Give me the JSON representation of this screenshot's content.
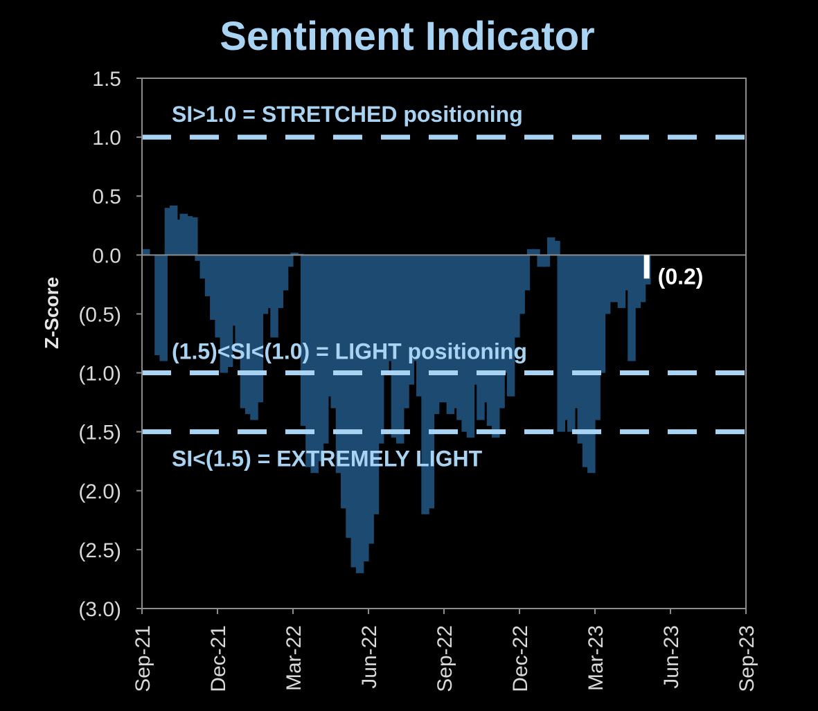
{
  "chart_data": {
    "type": "bar",
    "title": "Sentiment Indicator",
    "ylabel": "Z-Score",
    "xlabel": "",
    "ylim": [
      -3.0,
      1.5
    ],
    "yticks": [
      1.5,
      1.0,
      0.5,
      0.0,
      -0.5,
      -1.0,
      -1.5,
      -2.0,
      -2.5,
      -3.0
    ],
    "ytick_labels": [
      "1.5",
      "1.0",
      "0.5",
      "0.0",
      "(0.5)",
      "(1.0)",
      "(1.5)",
      "(2.0)",
      "(2.5)",
      "(3.0)"
    ],
    "xtick_labels": [
      "Sep-21",
      "Dec-21",
      "Mar-22",
      "Jun-22",
      "Sep-22",
      "Dec-22",
      "Mar-23",
      "Jun-23",
      "Sep-23"
    ],
    "grid": false,
    "colors": {
      "bars": "#1c4a70",
      "threshold_lines": "#a9d3f3",
      "latest_bar": "#ffffff",
      "background": "#000000"
    },
    "thresholds": [
      {
        "value": 1.0,
        "label": "SI>1.0 = STRETCHED positioning"
      },
      {
        "value": -1.0,
        "label": "(1.5)<SI<(1.0) = LIGHT positioning"
      },
      {
        "value": -1.5,
        "label": "SI<(1.5) = EXTREMELY LIGHT"
      }
    ],
    "latest": {
      "x": 20.0,
      "value": -0.2,
      "label": "(0.2)"
    },
    "series": [
      {
        "x_unit_note": "",
        "values": [
          [
            0.0,
            0.05
          ],
          [
            0.3,
            0.0
          ],
          [
            0.5,
            -0.85
          ],
          [
            0.7,
            -0.9
          ],
          [
            0.9,
            0.4
          ],
          [
            1.1,
            0.42
          ],
          [
            1.3,
            0.3
          ],
          [
            1.5,
            0.35
          ],
          [
            1.7,
            0.33
          ],
          [
            1.9,
            0.32
          ],
          [
            2.1,
            -0.05
          ],
          [
            2.3,
            -0.2
          ],
          [
            2.5,
            -0.35
          ],
          [
            2.7,
            -0.55
          ],
          [
            2.9,
            -0.7
          ],
          [
            3.1,
            -1.0
          ],
          [
            3.3,
            -0.95
          ],
          [
            3.5,
            -0.6
          ],
          [
            3.7,
            -0.8
          ],
          [
            3.9,
            -1.3
          ],
          [
            4.1,
            -1.35
          ],
          [
            4.3,
            -1.4
          ],
          [
            4.5,
            -1.25
          ],
          [
            4.7,
            -0.5
          ],
          [
            4.9,
            -0.45
          ],
          [
            5.1,
            -0.7
          ],
          [
            5.3,
            -0.45
          ],
          [
            5.5,
            -0.3
          ],
          [
            5.7,
            -0.1
          ],
          [
            5.9,
            0.02
          ],
          [
            6.1,
            0.01
          ],
          [
            6.3,
            -1.45
          ],
          [
            6.5,
            -1.8
          ],
          [
            6.7,
            -1.85
          ],
          [
            6.9,
            -1.75
          ],
          [
            7.1,
            -1.6
          ],
          [
            7.3,
            -1.2
          ],
          [
            7.5,
            -1.3
          ],
          [
            7.7,
            -1.85
          ],
          [
            7.9,
            -2.15
          ],
          [
            8.1,
            -2.4
          ],
          [
            8.3,
            -2.65
          ],
          [
            8.5,
            -2.7
          ],
          [
            8.7,
            -2.6
          ],
          [
            8.9,
            -2.45
          ],
          [
            9.1,
            -2.2
          ],
          [
            9.3,
            -1.6
          ],
          [
            9.5,
            -1.0
          ],
          [
            9.7,
            -0.9
          ],
          [
            9.9,
            -1.55
          ],
          [
            10.1,
            -1.6
          ],
          [
            10.3,
            -1.3
          ],
          [
            10.5,
            -1.1
          ],
          [
            10.7,
            -0.9
          ],
          [
            10.9,
            -1.2
          ],
          [
            11.1,
            -2.2
          ],
          [
            11.3,
            -2.15
          ],
          [
            11.5,
            -1.35
          ],
          [
            11.7,
            -1.25
          ],
          [
            11.9,
            -1.25
          ],
          [
            12.1,
            -1.35
          ],
          [
            12.3,
            -1.3
          ],
          [
            12.5,
            -1.4
          ],
          [
            12.7,
            -1.5
          ],
          [
            12.9,
            -1.55
          ],
          [
            13.1,
            -1.1
          ],
          [
            13.3,
            -1.4
          ],
          [
            13.5,
            -1.25
          ],
          [
            13.7,
            -1.45
          ],
          [
            13.9,
            -1.55
          ],
          [
            14.1,
            -1.3
          ],
          [
            14.3,
            -1.0
          ],
          [
            14.5,
            -1.2
          ],
          [
            14.7,
            -0.7
          ],
          [
            14.9,
            -0.5
          ],
          [
            15.1,
            -0.3
          ],
          [
            15.3,
            0.05
          ],
          [
            15.5,
            0.05
          ],
          [
            15.7,
            -0.1
          ],
          [
            15.9,
            -0.1
          ],
          [
            16.1,
            0.15
          ],
          [
            16.3,
            0.12
          ],
          [
            16.5,
            -1.5
          ],
          [
            16.7,
            -1.4
          ],
          [
            16.9,
            -1.5
          ],
          [
            17.1,
            -1.3
          ],
          [
            17.3,
            -1.6
          ],
          [
            17.5,
            -1.8
          ],
          [
            17.7,
            -1.85
          ],
          [
            17.9,
            -1.4
          ],
          [
            18.1,
            -1.0
          ],
          [
            18.3,
            -0.5
          ],
          [
            18.5,
            -0.4
          ],
          [
            18.7,
            -0.4
          ],
          [
            18.9,
            -0.45
          ],
          [
            19.1,
            -0.3
          ],
          [
            19.3,
            -0.9
          ],
          [
            19.5,
            -0.45
          ],
          [
            19.7,
            -0.4
          ],
          [
            19.9,
            -0.25
          ]
        ]
      }
    ],
    "x_axis_range": [
      0,
      24
    ]
  }
}
